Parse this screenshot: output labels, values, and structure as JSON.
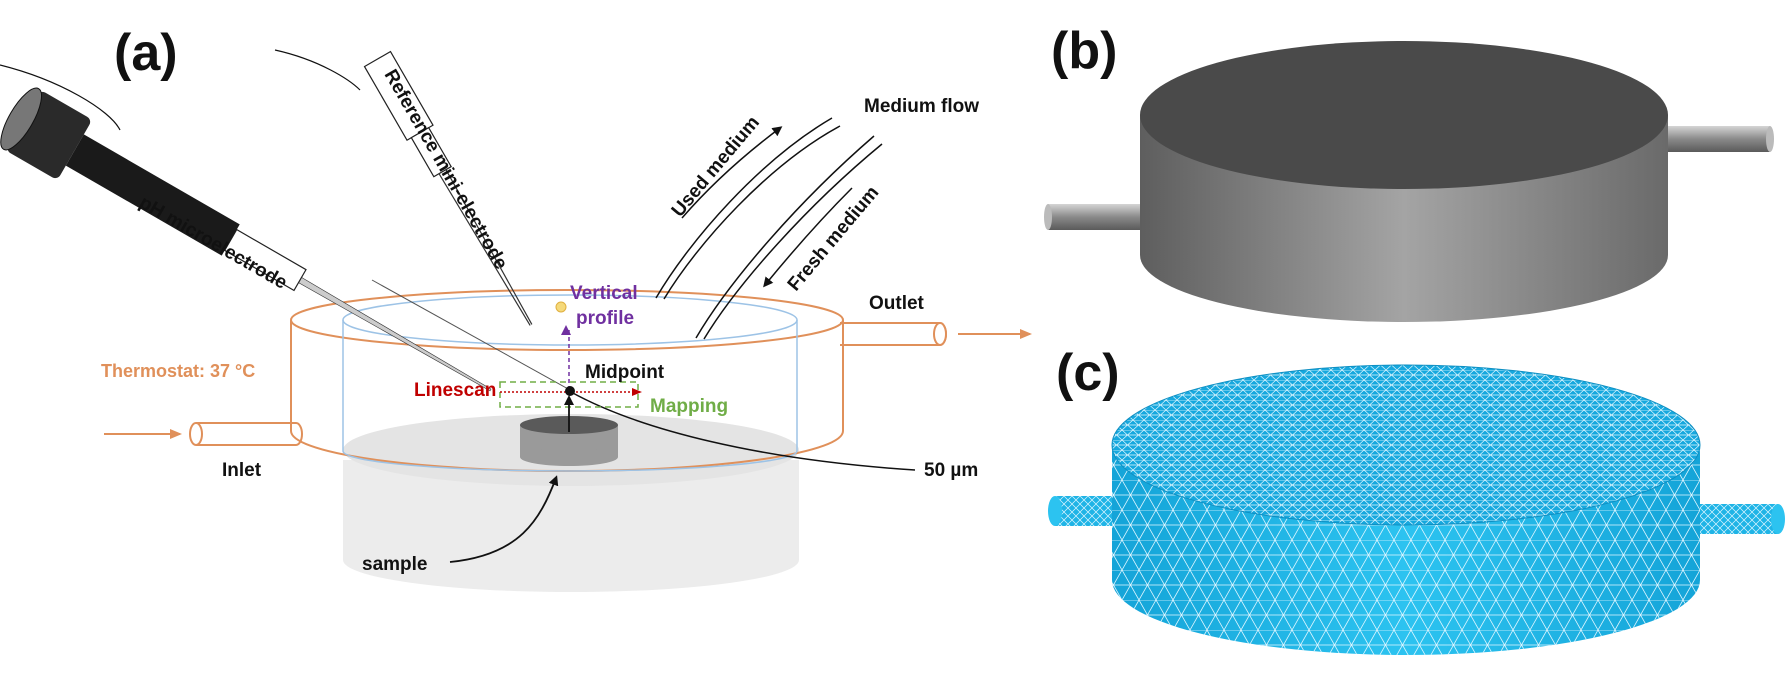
{
  "panels": {
    "a": "(a)",
    "b": "(b)",
    "c": "(c)"
  },
  "labels": {
    "ph_microelectrode": "pH microelectrode",
    "reference_electrode": "Reference mini-electrode",
    "used_medium": "Used medium",
    "medium_flow": "Medium flow",
    "fresh_medium": "Fresh medium",
    "vertical_profile_line1": "Vertical",
    "vertical_profile_line2": "profile",
    "outlet": "Outlet",
    "thermostat": "Thermostat: 37 °C",
    "midpoint": "Midpoint",
    "linescan": "Linescan",
    "mapping": "Mapping",
    "inlet": "Inlet",
    "distance": "50 µm",
    "sample": "sample"
  },
  "colors": {
    "thermostat": "#e0905a",
    "linescan": "#c00000",
    "mapping": "#70ad47",
    "vertical_profile": "#7030a0",
    "inner_cell": "#9dc3e6",
    "mesh": "#1fb4e6",
    "mesh_lines": "#e8f8ff",
    "solid_gray": "#6b6b6b"
  }
}
